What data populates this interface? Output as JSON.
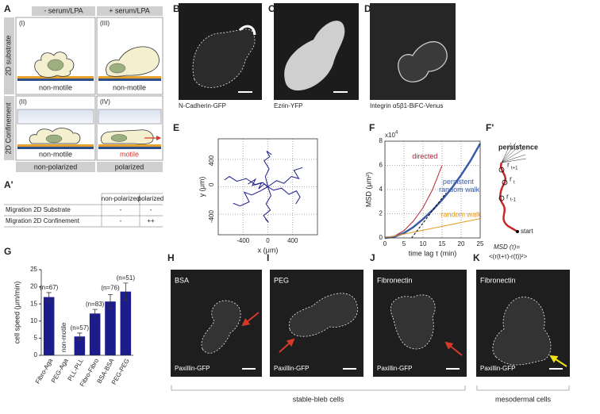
{
  "A": {
    "label": "A",
    "columns": [
      "- serum/LPA",
      "+ serum/LPA"
    ],
    "rows": [
      "2D substrate",
      "2D Confinement"
    ],
    "cells": [
      {
        "num": "(I)",
        "caption": "non-motile"
      },
      {
        "num": "(III)",
        "caption": "non-motile"
      },
      {
        "num": "(II)",
        "caption": "non-motile"
      },
      {
        "num": "(IV)",
        "caption": "motile"
      }
    ],
    "footer": [
      "non-polarized",
      "polarized"
    ]
  },
  "A_prime": {
    "label": "A'",
    "header": [
      "non-polarized",
      "polarized"
    ],
    "rows": [
      [
        "Migration 2D Substrate",
        "-",
        "-"
      ],
      [
        "Migration 2D Confinement",
        "-",
        "++"
      ]
    ]
  },
  "images": [
    {
      "label": "B",
      "caption": "N-Cadherin-GFP"
    },
    {
      "label": "C",
      "caption": "Ezrin-YFP"
    },
    {
      "label": "D",
      "caption": "Integrin α5β1-BiFC-Venus"
    }
  ],
  "bottom_images": [
    {
      "label": "H",
      "title": "BSA",
      "caption": "Paxillin-GFP"
    },
    {
      "label": "I",
      "title": "PEG",
      "caption": "Paxillin-GFP"
    },
    {
      "label": "J",
      "title": "Fibronectin",
      "caption": "Paxillin-GFP"
    },
    {
      "label": "K",
      "title": "Fibronectin",
      "caption": "Paxillin-GFP"
    }
  ],
  "groups": [
    "stable-bleb cells",
    "mesodermal cells"
  ],
  "F_prime": {
    "label": "F'",
    "title": "persistence",
    "points": [
      {
        "base": "r",
        "sub": "t+1"
      },
      {
        "base": "r",
        "sub": "t"
      },
      {
        "base": "r",
        "sub": "t-1"
      }
    ],
    "start": "start",
    "formula": [
      "MSD (τ)=",
      "<(r(t+τ)-r(t))²>"
    ]
  },
  "chart_data": [
    {
      "type": "line",
      "label": "E",
      "xlabel": "x (μm)",
      "ylabel": "y (μm)",
      "grid": true,
      "xlim": [
        -800,
        800
      ],
      "xticks": [
        -400,
        0,
        400
      ],
      "ylim": [
        -700,
        700
      ],
      "yticks": [
        -400,
        0,
        400
      ],
      "series": [
        {
          "color": "#1f1f8f",
          "x": [
            0,
            -80,
            -200,
            -350,
            -500,
            -620,
            -700
          ],
          "values": [
            0,
            60,
            30,
            120,
            80,
            150,
            100
          ]
        },
        {
          "color": "#1f1f8f",
          "x": [
            0,
            90,
            220,
            340,
            460,
            520,
            450
          ],
          "values": [
            0,
            -50,
            -20,
            -110,
            -60,
            -150,
            -250
          ]
        },
        {
          "color": "#1f1f8f",
          "x": [
            0,
            -40,
            20,
            -60,
            30,
            -20,
            60
          ],
          "values": [
            0,
            150,
            260,
            380,
            440,
            520,
            470
          ]
        },
        {
          "color": "#1f1f8f",
          "x": [
            0,
            50,
            -30,
            40,
            -70,
            10,
            -40
          ],
          "values": [
            0,
            -130,
            -250,
            -340,
            -420,
            -520,
            -470
          ]
        },
        {
          "color": "#1f1f8f",
          "x": [
            0,
            -120,
            -260,
            -380,
            -300,
            -450,
            -560
          ],
          "values": [
            0,
            -60,
            -120,
            -80,
            -220,
            -280,
            -240
          ]
        },
        {
          "color": "#1f1f8f",
          "x": [
            0,
            140,
            260,
            380,
            500,
            420,
            560
          ],
          "values": [
            0,
            90,
            50,
            150,
            120,
            240,
            280
          ]
        },
        {
          "color": "#1f1f8f",
          "x": [
            0,
            -60,
            -150,
            -100,
            -250,
            -200,
            -320
          ],
          "values": [
            0,
            40,
            -30,
            60,
            20,
            110,
            40
          ]
        }
      ]
    },
    {
      "type": "line",
      "label": "F",
      "xlabel": "time lag τ (min)",
      "ylabel": "MSD (μm²)",
      "scale": {
        "base": "x10",
        "exp": "4"
      },
      "grid": true,
      "xlim": [
        0,
        25
      ],
      "xticks": [
        0,
        5,
        10,
        15,
        20,
        25
      ],
      "ylim": [
        0,
        8
      ],
      "yticks": [
        0,
        2,
        4,
        6,
        8
      ],
      "series": [
        {
          "name": "directed",
          "color": "#b22234",
          "x": [
            0,
            2.5,
            5,
            7.5,
            10,
            12.5,
            15
          ],
          "values": [
            0,
            0.15,
            0.6,
            1.4,
            2.5,
            4.0,
            6.0
          ]
        },
        {
          "name": "persistent random walk",
          "color": "#3b5ba9",
          "x": [
            0,
            2.5,
            5,
            7.5,
            10,
            12.5,
            15,
            17.5,
            20,
            22.5,
            25
          ],
          "values": [
            0,
            0.1,
            0.4,
            0.9,
            1.55,
            2.3,
            3.15,
            4.1,
            5.2,
            6.4,
            7.8
          ]
        },
        {
          "name": "random walk",
          "color": "#e69a1c",
          "x": [
            0,
            25
          ],
          "values": [
            0,
            1.6
          ]
        },
        {
          "color": "#000000",
          "dash": true,
          "x": [
            7,
            16
          ],
          "values": [
            0,
            3.7
          ]
        }
      ]
    },
    {
      "type": "bar",
      "label": "G",
      "ylabel": "cell speed (μm/min)",
      "color": "#1c1c8c",
      "categories": [
        "Fibro-Aga",
        "PEG-Aga",
        "PLL-PLL",
        "Fibro-Fibro",
        "BSA-BSA",
        "PEG-PEG"
      ],
      "values": [
        17,
        null,
        5.5,
        12.2,
        15.7,
        18.6
      ],
      "errors": [
        1.3,
        null,
        1.0,
        1.2,
        2.0,
        2.5
      ],
      "n_labels": [
        "(n=67)",
        null,
        "(n=57)",
        "(n=83)",
        "(n=76)",
        "(n=51)"
      ],
      "annotation": "non-motile",
      "ylim": [
        0,
        25
      ],
      "yticks": [
        0,
        5,
        10,
        15,
        20,
        25
      ]
    }
  ]
}
